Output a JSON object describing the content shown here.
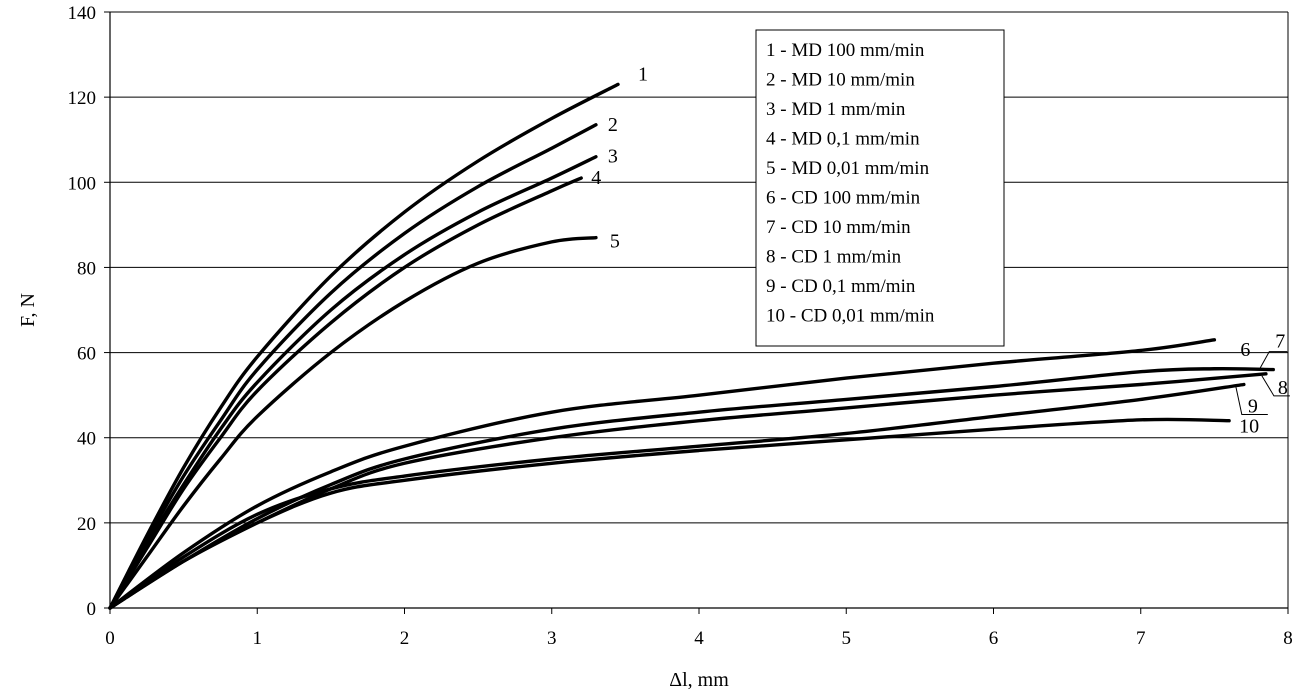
{
  "chart_data": {
    "type": "line",
    "xlabel": "Δl, mm",
    "ylabel": "F, N",
    "xlim": [
      0,
      8
    ],
    "ylim": [
      0,
      140
    ],
    "xticks": [
      0,
      1,
      2,
      3,
      4,
      5,
      6,
      7,
      8
    ],
    "yticks": [
      0,
      20,
      40,
      60,
      80,
      100,
      120,
      140
    ],
    "grid": "horizontal major gridlines",
    "legend_position": "top-right",
    "legend": [
      "1 - MD 100 mm/min",
      "2 - MD 10 mm/min",
      "3 - MD 1 mm/min",
      "4 - MD 0,1 mm/min",
      "5 - MD 0,01 mm/min",
      "6 - CD 100 mm/min",
      "7 - CD 10 mm/min",
      "8 - CD 1 mm/min",
      "9 - CD 0,1 mm/min",
      "10 - CD 0,01 mm/min"
    ],
    "series": [
      {
        "name": "1",
        "x": [
          0,
          0.25,
          0.5,
          0.75,
          1.0,
          1.5,
          2.0,
          2.5,
          3.0,
          3.45
        ],
        "y": [
          0,
          17,
          33,
          47,
          59,
          78,
          93,
          105,
          115,
          123
        ]
      },
      {
        "name": "2",
        "x": [
          0,
          0.25,
          0.5,
          0.75,
          1.0,
          1.5,
          2.0,
          2.5,
          3.0,
          3.3
        ],
        "y": [
          0,
          16,
          31,
          44,
          56,
          74,
          88,
          99,
          108,
          113.5
        ]
      },
      {
        "name": "3",
        "x": [
          0,
          0.25,
          0.5,
          0.75,
          1.0,
          1.5,
          2.0,
          2.5,
          3.0,
          3.3
        ],
        "y": [
          0,
          15,
          29,
          42,
          53,
          70,
          83,
          93,
          101,
          106
        ]
      },
      {
        "name": "4",
        "x": [
          0,
          0.25,
          0.5,
          0.75,
          1.0,
          1.5,
          2.0,
          2.5,
          3.0,
          3.2
        ],
        "y": [
          0,
          14,
          28,
          40,
          51,
          67,
          80,
          90,
          98,
          101
        ]
      },
      {
        "name": "5",
        "x": [
          0,
          0.25,
          0.5,
          0.75,
          1.0,
          1.5,
          2.0,
          2.5,
          3.0,
          3.3
        ],
        "y": [
          0,
          12,
          24,
          35,
          45,
          60,
          72,
          81,
          86,
          87
        ]
      },
      {
        "name": "6",
        "x": [
          0,
          0.5,
          1.0,
          1.5,
          2.0,
          3.0,
          4.0,
          5.0,
          6.0,
          7.0,
          7.5
        ],
        "y": [
          0,
          13,
          24,
          32,
          38,
          46,
          50,
          54,
          57.5,
          60.5,
          63
        ]
      },
      {
        "name": "7",
        "x": [
          0,
          0.5,
          1.0,
          1.5,
          2.0,
          3.0,
          4.0,
          5.0,
          6.0,
          7.0,
          7.5,
          7.9
        ],
        "y": [
          0,
          11,
          21,
          29,
          35,
          42,
          46,
          49,
          52,
          55.5,
          56.2,
          56
        ]
      },
      {
        "name": "8",
        "x": [
          0,
          0.5,
          1.0,
          1.5,
          2.0,
          3.0,
          4.0,
          5.0,
          6.0,
          7.0,
          7.85
        ],
        "y": [
          0,
          11,
          20,
          28,
          34,
          40,
          44,
          47,
          50,
          52.5,
          55
        ]
      },
      {
        "name": "9",
        "x": [
          0,
          0.5,
          1.0,
          1.5,
          2.0,
          3.0,
          4.0,
          5.0,
          6.0,
          7.0,
          7.7
        ],
        "y": [
          0,
          12,
          22,
          28,
          31,
          35,
          38,
          41,
          45,
          49,
          52.5
        ]
      },
      {
        "name": "10",
        "x": [
          0,
          0.5,
          1.0,
          1.5,
          2.0,
          3.0,
          4.0,
          5.0,
          6.0,
          7.0,
          7.6
        ],
        "y": [
          0,
          11,
          20,
          27,
          30,
          34,
          37,
          39.5,
          42,
          44.2,
          44
        ]
      }
    ]
  }
}
